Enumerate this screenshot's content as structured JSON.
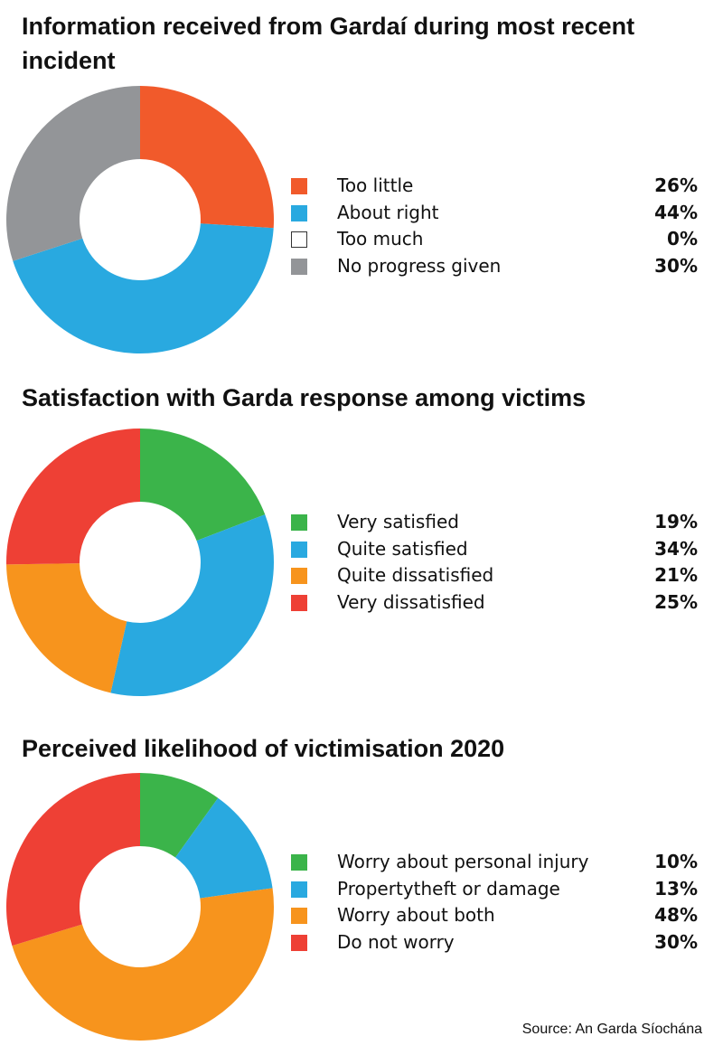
{
  "chart_data": [
    {
      "type": "pie",
      "title": "Information received from Gardaí during most recent incident",
      "categories": [
        "Too little",
        "About right",
        "Too much",
        "No progress given"
      ],
      "values": [
        26,
        44,
        0,
        30
      ],
      "labels": [
        "26%",
        "44%",
        "0%",
        "30%"
      ],
      "colors": [
        "#F15A2B",
        "#29A9E0",
        "#FFFFFF",
        "#939598"
      ],
      "legend": "right"
    },
    {
      "type": "pie",
      "title": "Satisfaction with Garda response among victims",
      "categories": [
        "Very satisfied",
        "Quite satisfied",
        "Quite dissatisfied",
        "Very dissatisfied"
      ],
      "values": [
        19,
        34,
        21,
        25
      ],
      "labels": [
        "19%",
        "34%",
        "21%",
        "25%"
      ],
      "colors": [
        "#3BB44A",
        "#29A9E0",
        "#F7941D",
        "#EE4035"
      ],
      "legend": "right"
    },
    {
      "type": "pie",
      "title": "Perceived likelihood of victimisation 2020",
      "categories": [
        "Worry about personal injury",
        "Propertytheft or damage",
        "Worry about both",
        "Do not worry"
      ],
      "values": [
        10,
        13,
        48,
        30
      ],
      "labels": [
        "10%",
        "13%",
        "48%",
        "30%"
      ],
      "colors": [
        "#3BB44A",
        "#29A9E0",
        "#F7941D",
        "#EE4035"
      ],
      "legend": "right"
    }
  ],
  "source": "Source: An Garda Síochána"
}
